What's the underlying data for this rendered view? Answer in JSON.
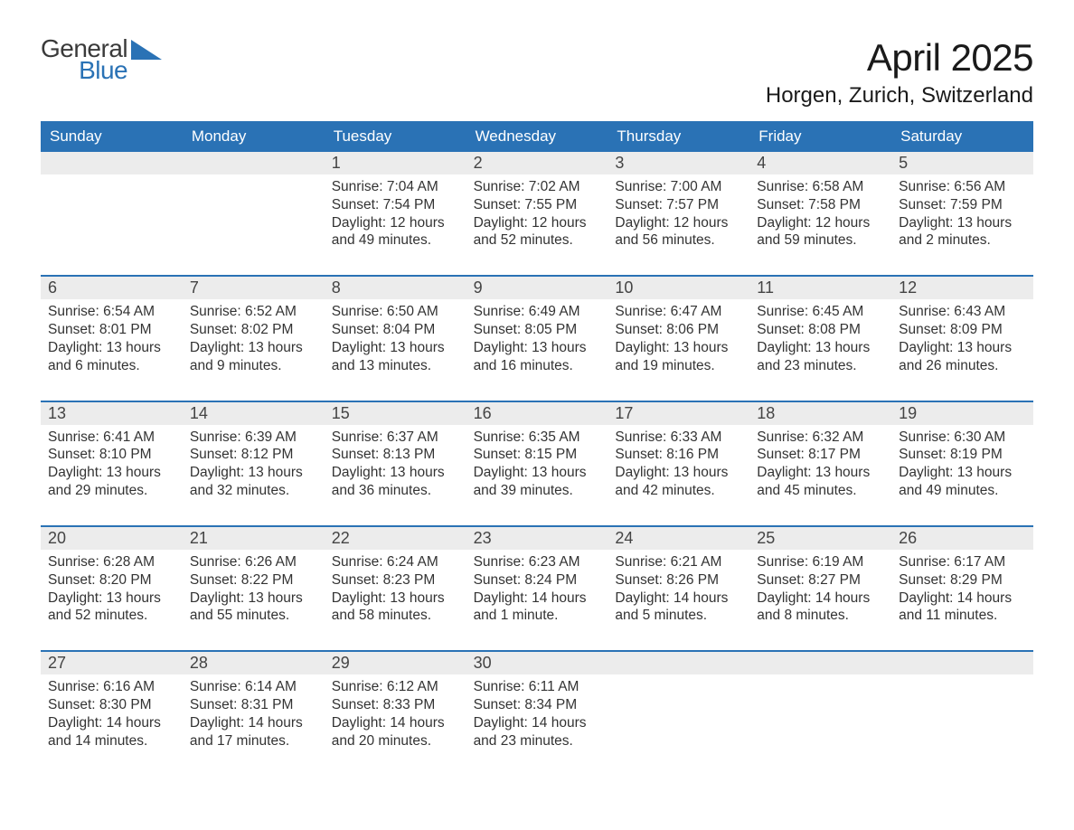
{
  "brand": {
    "line1": "General",
    "line2": "Blue",
    "accent_color": "#2a72b5",
    "text_color": "#3a3a3a"
  },
  "title": "April 2025",
  "location": "Horgen, Zurich, Switzerland",
  "styling": {
    "header_bg": "#2a72b5",
    "header_fg": "#ffffff",
    "daynum_bg": "#ececec",
    "rule_color": "#2a72b5",
    "body_fg": "#333333",
    "page_bg": "#ffffff",
    "title_fontsize": 42,
    "location_fontsize": 24,
    "dow_fontsize": 17,
    "body_fontsize": 15.5
  },
  "days_of_week": [
    "Sunday",
    "Monday",
    "Tuesday",
    "Wednesday",
    "Thursday",
    "Friday",
    "Saturday"
  ],
  "weeks": [
    [
      null,
      null,
      {
        "n": "1",
        "sunrise": "Sunrise: 7:04 AM",
        "sunset": "Sunset: 7:54 PM",
        "dl1": "Daylight: 12 hours",
        "dl2": "and 49 minutes."
      },
      {
        "n": "2",
        "sunrise": "Sunrise: 7:02 AM",
        "sunset": "Sunset: 7:55 PM",
        "dl1": "Daylight: 12 hours",
        "dl2": "and 52 minutes."
      },
      {
        "n": "3",
        "sunrise": "Sunrise: 7:00 AM",
        "sunset": "Sunset: 7:57 PM",
        "dl1": "Daylight: 12 hours",
        "dl2": "and 56 minutes."
      },
      {
        "n": "4",
        "sunrise": "Sunrise: 6:58 AM",
        "sunset": "Sunset: 7:58 PM",
        "dl1": "Daylight: 12 hours",
        "dl2": "and 59 minutes."
      },
      {
        "n": "5",
        "sunrise": "Sunrise: 6:56 AM",
        "sunset": "Sunset: 7:59 PM",
        "dl1": "Daylight: 13 hours",
        "dl2": "and 2 minutes."
      }
    ],
    [
      {
        "n": "6",
        "sunrise": "Sunrise: 6:54 AM",
        "sunset": "Sunset: 8:01 PM",
        "dl1": "Daylight: 13 hours",
        "dl2": "and 6 minutes."
      },
      {
        "n": "7",
        "sunrise": "Sunrise: 6:52 AM",
        "sunset": "Sunset: 8:02 PM",
        "dl1": "Daylight: 13 hours",
        "dl2": "and 9 minutes."
      },
      {
        "n": "8",
        "sunrise": "Sunrise: 6:50 AM",
        "sunset": "Sunset: 8:04 PM",
        "dl1": "Daylight: 13 hours",
        "dl2": "and 13 minutes."
      },
      {
        "n": "9",
        "sunrise": "Sunrise: 6:49 AM",
        "sunset": "Sunset: 8:05 PM",
        "dl1": "Daylight: 13 hours",
        "dl2": "and 16 minutes."
      },
      {
        "n": "10",
        "sunrise": "Sunrise: 6:47 AM",
        "sunset": "Sunset: 8:06 PM",
        "dl1": "Daylight: 13 hours",
        "dl2": "and 19 minutes."
      },
      {
        "n": "11",
        "sunrise": "Sunrise: 6:45 AM",
        "sunset": "Sunset: 8:08 PM",
        "dl1": "Daylight: 13 hours",
        "dl2": "and 23 minutes."
      },
      {
        "n": "12",
        "sunrise": "Sunrise: 6:43 AM",
        "sunset": "Sunset: 8:09 PM",
        "dl1": "Daylight: 13 hours",
        "dl2": "and 26 minutes."
      }
    ],
    [
      {
        "n": "13",
        "sunrise": "Sunrise: 6:41 AM",
        "sunset": "Sunset: 8:10 PM",
        "dl1": "Daylight: 13 hours",
        "dl2": "and 29 minutes."
      },
      {
        "n": "14",
        "sunrise": "Sunrise: 6:39 AM",
        "sunset": "Sunset: 8:12 PM",
        "dl1": "Daylight: 13 hours",
        "dl2": "and 32 minutes."
      },
      {
        "n": "15",
        "sunrise": "Sunrise: 6:37 AM",
        "sunset": "Sunset: 8:13 PM",
        "dl1": "Daylight: 13 hours",
        "dl2": "and 36 minutes."
      },
      {
        "n": "16",
        "sunrise": "Sunrise: 6:35 AM",
        "sunset": "Sunset: 8:15 PM",
        "dl1": "Daylight: 13 hours",
        "dl2": "and 39 minutes."
      },
      {
        "n": "17",
        "sunrise": "Sunrise: 6:33 AM",
        "sunset": "Sunset: 8:16 PM",
        "dl1": "Daylight: 13 hours",
        "dl2": "and 42 minutes."
      },
      {
        "n": "18",
        "sunrise": "Sunrise: 6:32 AM",
        "sunset": "Sunset: 8:17 PM",
        "dl1": "Daylight: 13 hours",
        "dl2": "and 45 minutes."
      },
      {
        "n": "19",
        "sunrise": "Sunrise: 6:30 AM",
        "sunset": "Sunset: 8:19 PM",
        "dl1": "Daylight: 13 hours",
        "dl2": "and 49 minutes."
      }
    ],
    [
      {
        "n": "20",
        "sunrise": "Sunrise: 6:28 AM",
        "sunset": "Sunset: 8:20 PM",
        "dl1": "Daylight: 13 hours",
        "dl2": "and 52 minutes."
      },
      {
        "n": "21",
        "sunrise": "Sunrise: 6:26 AM",
        "sunset": "Sunset: 8:22 PM",
        "dl1": "Daylight: 13 hours",
        "dl2": "and 55 minutes."
      },
      {
        "n": "22",
        "sunrise": "Sunrise: 6:24 AM",
        "sunset": "Sunset: 8:23 PM",
        "dl1": "Daylight: 13 hours",
        "dl2": "and 58 minutes."
      },
      {
        "n": "23",
        "sunrise": "Sunrise: 6:23 AM",
        "sunset": "Sunset: 8:24 PM",
        "dl1": "Daylight: 14 hours",
        "dl2": "and 1 minute."
      },
      {
        "n": "24",
        "sunrise": "Sunrise: 6:21 AM",
        "sunset": "Sunset: 8:26 PM",
        "dl1": "Daylight: 14 hours",
        "dl2": "and 5 minutes."
      },
      {
        "n": "25",
        "sunrise": "Sunrise: 6:19 AM",
        "sunset": "Sunset: 8:27 PM",
        "dl1": "Daylight: 14 hours",
        "dl2": "and 8 minutes."
      },
      {
        "n": "26",
        "sunrise": "Sunrise: 6:17 AM",
        "sunset": "Sunset: 8:29 PM",
        "dl1": "Daylight: 14 hours",
        "dl2": "and 11 minutes."
      }
    ],
    [
      {
        "n": "27",
        "sunrise": "Sunrise: 6:16 AM",
        "sunset": "Sunset: 8:30 PM",
        "dl1": "Daylight: 14 hours",
        "dl2": "and 14 minutes."
      },
      {
        "n": "28",
        "sunrise": "Sunrise: 6:14 AM",
        "sunset": "Sunset: 8:31 PM",
        "dl1": "Daylight: 14 hours",
        "dl2": "and 17 minutes."
      },
      {
        "n": "29",
        "sunrise": "Sunrise: 6:12 AM",
        "sunset": "Sunset: 8:33 PM",
        "dl1": "Daylight: 14 hours",
        "dl2": "and 20 minutes."
      },
      {
        "n": "30",
        "sunrise": "Sunrise: 6:11 AM",
        "sunset": "Sunset: 8:34 PM",
        "dl1": "Daylight: 14 hours",
        "dl2": "and 23 minutes."
      },
      null,
      null,
      null
    ]
  ]
}
